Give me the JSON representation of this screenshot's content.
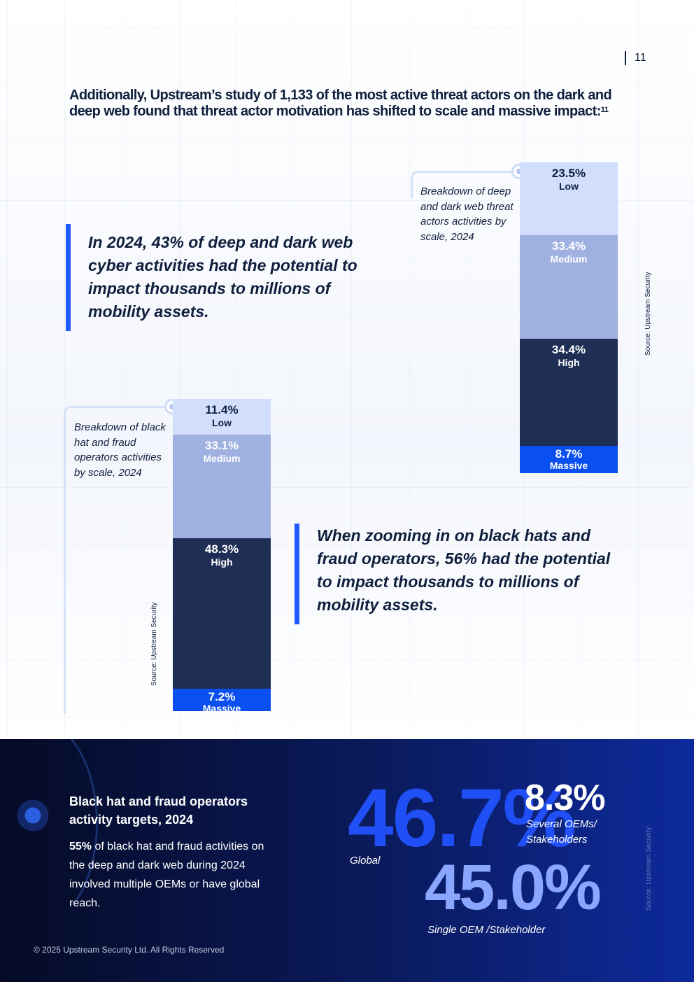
{
  "page_number": "11",
  "intro": {
    "text": "Additionally, Upstream’s study of 1,133 of the most active threat actors on the dark and deep web found that threat actor motivation has shifted to scale and massive impact:",
    "footnote": "11"
  },
  "quotes": [
    "In 2024, 43% of deep and dark web cyber activities had the potential to impact thousands to millions of mobility assets.",
    "When zooming in on black hats and fraud operators, 56% had the potential to impact thousands to millions of mobility assets."
  ],
  "charts": {
    "deep_dark": {
      "caption": "Breakdown of deep and dark web threat actors activities by scale, 2024",
      "source": "Source: Upstream Security"
    },
    "black_hat": {
      "caption": "Breakdown of black hat and fraud operators activities by scale, 2024",
      "source": "Source: Upstream Security"
    }
  },
  "chart_data": [
    {
      "type": "bar",
      "stacked": true,
      "title": "Breakdown of deep and dark web threat actors activities by scale, 2024",
      "categories": [
        "Low",
        "Medium",
        "High",
        "Massive"
      ],
      "values": [
        23.5,
        33.4,
        34.4,
        8.7
      ],
      "labels": [
        "23.5%",
        "33.4%",
        "34.4%",
        "8.7%"
      ],
      "colors": [
        "#d2dffc",
        "#9eb1e0",
        "#1e2e55",
        "#0a4ff0"
      ]
    },
    {
      "type": "bar",
      "stacked": true,
      "title": "Breakdown of black hat and fraud operators activities by scale, 2024",
      "categories": [
        "Low",
        "Medium",
        "High",
        "Massive"
      ],
      "values": [
        11.4,
        33.1,
        48.3,
        7.2
      ],
      "labels": [
        "11.4%",
        "33.1%",
        "48.3%",
        "7.2%"
      ],
      "colors": [
        "#d2dffc",
        "#9eb1e0",
        "#1e2e55",
        "#0a4ff0"
      ]
    }
  ],
  "band": {
    "title": "Black hat and fraud operators activity targets, 2024",
    "text_bold": "55%",
    "text_rest": " of black hat and fraud activities on the deep and dark web during 2024 involved multiple OEMs or have global reach.",
    "stats": [
      {
        "value": "46.7%",
        "label": "Global",
        "color": "#1f4ff5"
      },
      {
        "value": "8.3%",
        "label": "Several OEMs/ Stakeholders",
        "color": "#ffffff"
      },
      {
        "value": "45.0%",
        "label": "Single OEM /Stakeholder",
        "color": "#8aa6ff"
      }
    ],
    "source": "Source: Upstream Security",
    "copyright": "© 2025 Upstream Security Ltd. All Rights Reserved"
  }
}
